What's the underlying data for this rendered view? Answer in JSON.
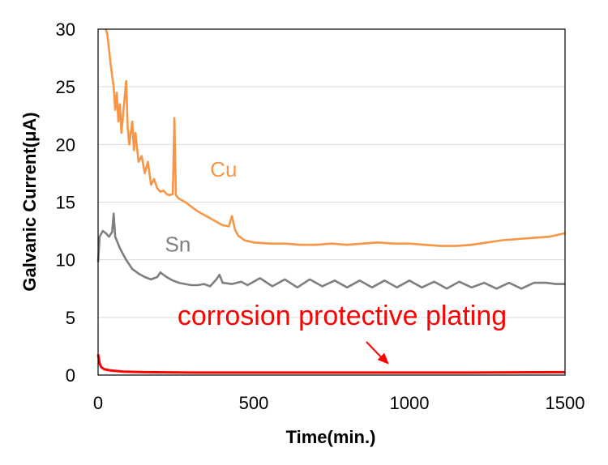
{
  "chart_data": {
    "type": "line",
    "xlabel": "Time(min.)",
    "ylabel": "Galvanic Current(μA)",
    "xlim": [
      0,
      1500
    ],
    "ylim": [
      0,
      30
    ],
    "xticks": [
      0,
      500,
      1000,
      1500
    ],
    "yticks": [
      0,
      5,
      10,
      15,
      20,
      25,
      30
    ],
    "grid": "horizontal",
    "legend": "none",
    "annotation": {
      "text": "corrosion protective plating",
      "color": "#ff0000",
      "points_to": {
        "x": 950,
        "y": 0.3
      }
    },
    "series": [
      {
        "name": "Cu",
        "color": "#f79646",
        "points": [
          [
            25,
            30.0
          ],
          [
            30,
            29.5
          ],
          [
            40,
            27.0
          ],
          [
            50,
            25.0
          ],
          [
            55,
            23.0
          ],
          [
            60,
            24.5
          ],
          [
            65,
            22.0
          ],
          [
            70,
            23.5
          ],
          [
            75,
            21.0
          ],
          [
            80,
            22.5
          ],
          [
            90,
            25.5
          ],
          [
            95,
            21.5
          ],
          [
            100,
            20.0
          ],
          [
            110,
            22.0
          ],
          [
            115,
            19.5
          ],
          [
            120,
            21.0
          ],
          [
            130,
            18.5
          ],
          [
            140,
            19.0
          ],
          [
            150,
            17.5
          ],
          [
            160,
            18.5
          ],
          [
            170,
            16.5
          ],
          [
            180,
            17.0
          ],
          [
            190,
            16.2
          ],
          [
            200,
            15.9
          ],
          [
            210,
            16.0
          ],
          [
            220,
            15.7
          ],
          [
            230,
            15.6
          ],
          [
            240,
            15.7
          ],
          [
            245,
            22.3
          ],
          [
            250,
            15.6
          ],
          [
            260,
            15.3
          ],
          [
            280,
            15.0
          ],
          [
            300,
            14.6
          ],
          [
            320,
            14.2
          ],
          [
            340,
            13.9
          ],
          [
            360,
            13.6
          ],
          [
            380,
            13.3
          ],
          [
            400,
            13.0
          ],
          [
            420,
            12.9
          ],
          [
            430,
            13.8
          ],
          [
            440,
            12.6
          ],
          [
            450,
            12.1
          ],
          [
            470,
            11.7
          ],
          [
            500,
            11.5
          ],
          [
            550,
            11.4
          ],
          [
            600,
            11.4
          ],
          [
            650,
            11.3
          ],
          [
            700,
            11.3
          ],
          [
            750,
            11.4
          ],
          [
            800,
            11.3
          ],
          [
            850,
            11.4
          ],
          [
            900,
            11.5
          ],
          [
            950,
            11.4
          ],
          [
            1000,
            11.4
          ],
          [
            1050,
            11.3
          ],
          [
            1100,
            11.2
          ],
          [
            1150,
            11.2
          ],
          [
            1200,
            11.3
          ],
          [
            1250,
            11.5
          ],
          [
            1300,
            11.7
          ],
          [
            1350,
            11.8
          ],
          [
            1400,
            11.9
          ],
          [
            1450,
            12.0
          ],
          [
            1500,
            12.3
          ]
        ]
      },
      {
        "name": "Sn",
        "color": "#7f7f7f",
        "points": [
          [
            0,
            9.8
          ],
          [
            5,
            12.0
          ],
          [
            15,
            12.5
          ],
          [
            25,
            12.3
          ],
          [
            35,
            12.0
          ],
          [
            45,
            12.4
          ],
          [
            50,
            14.0
          ],
          [
            55,
            12.0
          ],
          [
            70,
            11.0
          ],
          [
            90,
            10.0
          ],
          [
            110,
            9.2
          ],
          [
            130,
            8.8
          ],
          [
            150,
            8.5
          ],
          [
            170,
            8.3
          ],
          [
            190,
            8.5
          ],
          [
            200,
            8.9
          ],
          [
            220,
            8.5
          ],
          [
            240,
            8.2
          ],
          [
            260,
            8.0
          ],
          [
            280,
            7.9
          ],
          [
            300,
            7.8
          ],
          [
            320,
            7.8
          ],
          [
            340,
            7.9
          ],
          [
            360,
            7.7
          ],
          [
            380,
            8.3
          ],
          [
            390,
            8.7
          ],
          [
            400,
            8.0
          ],
          [
            430,
            7.9
          ],
          [
            460,
            8.1
          ],
          [
            480,
            7.8
          ],
          [
            520,
            8.4
          ],
          [
            560,
            7.7
          ],
          [
            600,
            8.3
          ],
          [
            640,
            7.6
          ],
          [
            680,
            8.3
          ],
          [
            720,
            7.7
          ],
          [
            760,
            8.2
          ],
          [
            800,
            7.6
          ],
          [
            840,
            8.2
          ],
          [
            880,
            7.6
          ],
          [
            920,
            8.2
          ],
          [
            960,
            7.6
          ],
          [
            1000,
            8.2
          ],
          [
            1040,
            7.6
          ],
          [
            1080,
            8.1
          ],
          [
            1120,
            7.5
          ],
          [
            1160,
            8.1
          ],
          [
            1200,
            7.6
          ],
          [
            1240,
            8.0
          ],
          [
            1280,
            7.5
          ],
          [
            1320,
            8.0
          ],
          [
            1360,
            7.5
          ],
          [
            1400,
            8.0
          ],
          [
            1440,
            8.0
          ],
          [
            1470,
            7.9
          ],
          [
            1500,
            7.9
          ]
        ]
      },
      {
        "name": "corrosion protective plating",
        "color": "#ff0000",
        "points": [
          [
            0,
            1.8
          ],
          [
            5,
            1.0
          ],
          [
            10,
            0.7
          ],
          [
            20,
            0.5
          ],
          [
            40,
            0.4
          ],
          [
            80,
            0.3
          ],
          [
            150,
            0.25
          ],
          [
            300,
            0.22
          ],
          [
            600,
            0.22
          ],
          [
            900,
            0.22
          ],
          [
            1200,
            0.22
          ],
          [
            1500,
            0.25
          ]
        ]
      }
    ],
    "series_labels": [
      {
        "text": "Cu",
        "color": "#f79646",
        "x": 360,
        "y": 17.2
      },
      {
        "text": "Sn",
        "color": "#7f7f7f",
        "x": 215,
        "y": 10.7
      }
    ]
  }
}
